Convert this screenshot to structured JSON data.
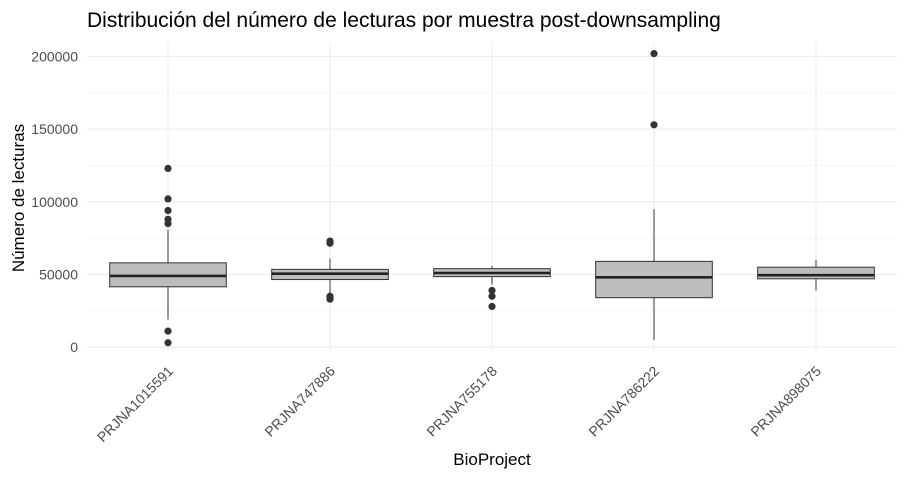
{
  "chart_data": {
    "type": "boxplot",
    "title": "Distribución del número de lecturas por muestra post-downsampling",
    "xlabel": "BioProject",
    "ylabel": "Número de lecturas",
    "ylim": [
      -2000,
      210000
    ],
    "yticks": [
      0,
      50000,
      100000,
      150000,
      200000
    ],
    "ytick_labels": [
      "0",
      "50000",
      "100000",
      "150000",
      "200000"
    ],
    "grid": true,
    "legend": "none",
    "box_fill": "#bdbdbd",
    "box_stroke": "#333333",
    "outlier_color": "#333333",
    "categories": [
      "PRJNA1015591",
      "PRJNA747886",
      "PRJNA755178",
      "PRJNA786222",
      "PRJNA898075"
    ],
    "boxes": [
      {
        "category": "PRJNA1015591",
        "whisker_low": 19000,
        "q1": 41500,
        "median": 49000,
        "q3": 58000,
        "whisker_high": 81000,
        "outliers": [
          123000,
          102000,
          94000,
          88000,
          85000,
          11000,
          3000
        ]
      },
      {
        "category": "PRJNA747886",
        "whisker_low": 37000,
        "q1": 46500,
        "median": 50500,
        "q3": 53500,
        "whisker_high": 61000,
        "outliers": [
          73000,
          72000,
          71500,
          35000,
          34000,
          33000
        ]
      },
      {
        "category": "PRJNA755178",
        "whisker_low": 43000,
        "q1": 48500,
        "median": 51000,
        "q3": 54000,
        "whisker_high": 56000,
        "outliers": [
          39000,
          35000,
          28000
        ]
      },
      {
        "category": "PRJNA786222",
        "whisker_low": 5000,
        "q1": 34000,
        "median": 48000,
        "q3": 59000,
        "whisker_high": 95000,
        "outliers": [
          202000,
          153000
        ]
      },
      {
        "category": "PRJNA898075",
        "whisker_low": 39000,
        "q1": 47000,
        "median": 49500,
        "q3": 55000,
        "whisker_high": 60000,
        "outliers": []
      }
    ]
  }
}
